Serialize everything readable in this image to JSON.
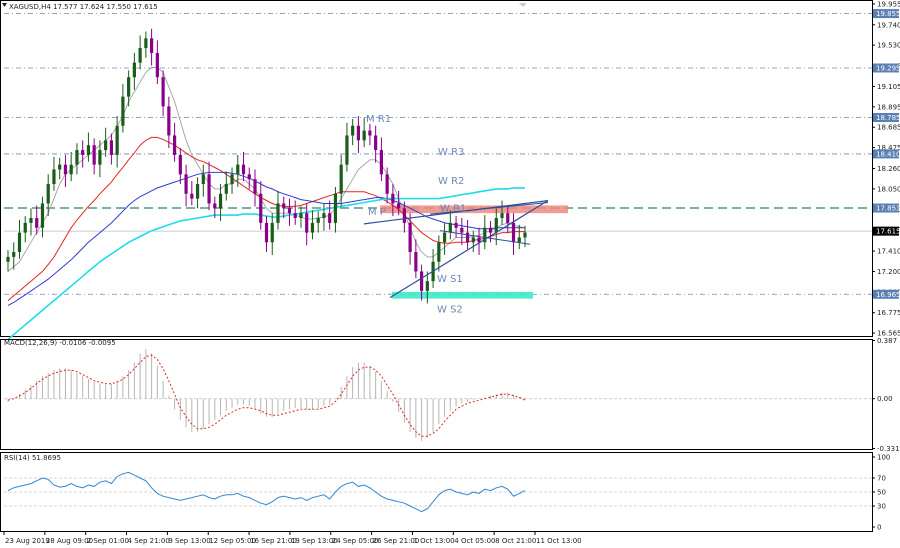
{
  "chart_data": {
    "type": "candlestick",
    "main": {
      "header": "XAGUSD,H4  17.577 17.624 17.550 17.615",
      "y_ticks": [
        "19.955",
        "19.740",
        "19.530",
        "19.315",
        "19.105",
        "18.895",
        "18.685",
        "18.475",
        "18.260",
        "18.050",
        "17.840",
        "17.630",
        "17.410",
        "17.200",
        "16.990",
        "16.775",
        "16.565"
      ],
      "ylim": [
        16.525,
        19.995
      ],
      "level_tags": [
        {
          "label": "19.855",
          "value": 19.855,
          "color": "#5a7fb5"
        },
        {
          "label": "19.295",
          "value": 19.295,
          "color": "#5a7fb5"
        },
        {
          "label": "18.785",
          "value": 18.785,
          "color": "#5a7fb5"
        },
        {
          "label": "18.410",
          "value": 18.41,
          "color": "#5a7fb5"
        },
        {
          "label": "17.853",
          "value": 17.853,
          "color": "#5a7fb5"
        },
        {
          "label": "17.615",
          "value": 17.615,
          "color": "#000000"
        },
        {
          "label": "16.965",
          "value": 16.965,
          "color": "#5a7fb5"
        }
      ],
      "level_labels": [
        {
          "text": "M R1",
          "value": 18.78
        },
        {
          "text": "W R3",
          "value": 18.44
        },
        {
          "text": "W R2",
          "value": 18.14
        },
        {
          "text": "W R1",
          "value": 17.86
        },
        {
          "text": "M P",
          "value": 17.82
        },
        {
          "text": "W S1",
          "value": 17.13
        },
        {
          "text": "W S2",
          "value": 16.82
        }
      ],
      "series": [
        {
          "name": "",
          "kind": "close",
          "values": [
            17.35,
            17.4,
            17.6,
            17.7,
            17.75,
            17.65,
            17.9,
            18.1,
            18.25,
            18.3,
            18.2,
            18.3,
            18.45,
            18.4,
            18.5,
            18.3,
            18.45,
            18.55,
            18.4,
            18.7,
            19.0,
            19.2,
            19.35,
            19.5,
            19.6,
            19.45,
            19.2,
            18.9,
            18.6,
            18.4,
            18.2,
            18.0,
            17.95,
            18.1,
            18.2,
            17.9,
            17.85,
            18.0,
            18.1,
            18.2,
            18.3,
            18.2,
            18.15,
            18.0,
            17.7,
            17.5,
            17.7,
            17.9,
            17.85,
            17.8,
            17.75,
            17.8,
            17.6,
            17.7,
            17.75,
            17.8,
            17.7,
            18.0,
            18.3,
            18.6,
            18.7,
            18.55,
            18.65,
            18.6,
            18.45,
            18.2,
            18.0,
            17.9,
            17.85,
            17.7,
            17.4,
            17.2,
            17.0,
            17.1,
            17.3,
            17.5,
            17.6,
            17.7,
            17.65,
            17.6,
            17.5,
            17.55,
            17.5,
            17.65,
            17.6,
            17.75,
            17.8,
            17.7,
            17.5,
            17.55,
            17.6
          ]
        },
        {
          "name": "",
          "kind": "ma-gray",
          "values": [
            17.2,
            17.25,
            17.3,
            17.4,
            17.5,
            17.6,
            17.7,
            17.8,
            17.95,
            18.1,
            18.2,
            18.25,
            18.3,
            18.35,
            18.4,
            18.45,
            18.5,
            18.55,
            18.6,
            18.7,
            18.8,
            18.95,
            19.05,
            19.15,
            19.25,
            19.3,
            19.3,
            19.25,
            19.1,
            18.95,
            18.75,
            18.55,
            18.4,
            18.3,
            18.2,
            18.1,
            18.05,
            18.05,
            18.1,
            18.1,
            18.15,
            18.15,
            18.1,
            18.05,
            17.95,
            17.85,
            17.8,
            17.8,
            17.8,
            17.8,
            17.78,
            17.76,
            17.74,
            17.74,
            17.75,
            17.76,
            17.78,
            17.85,
            17.95,
            18.05,
            18.15,
            18.25,
            18.3,
            18.35,
            18.35,
            18.3,
            18.2,
            18.1,
            17.95,
            17.8,
            17.65,
            17.5,
            17.4,
            17.35,
            17.35,
            17.4,
            17.45,
            17.5,
            17.55,
            17.55,
            17.55,
            17.56,
            17.57,
            17.6,
            17.62,
            17.65,
            17.68,
            17.7,
            17.68,
            17.66,
            17.65
          ]
        },
        {
          "name": "",
          "kind": "ma-red",
          "values": [
            16.9,
            16.95,
            17.0,
            17.05,
            17.1,
            17.15,
            17.2,
            17.27,
            17.35,
            17.45,
            17.55,
            17.65,
            17.73,
            17.8,
            17.87,
            17.93,
            18.0,
            18.06,
            18.12,
            18.2,
            18.27,
            18.35,
            18.42,
            18.5,
            18.55,
            18.58,
            18.58,
            18.56,
            18.53,
            18.5,
            18.46,
            18.42,
            18.38,
            18.35,
            18.33,
            18.3,
            18.27,
            18.24,
            18.2,
            18.16,
            18.12,
            18.08,
            18.04,
            18.0,
            17.96,
            17.93,
            17.9,
            17.88,
            17.87,
            17.87,
            17.87,
            17.88,
            17.9,
            17.92,
            17.94,
            17.96,
            17.98,
            18.0,
            18.02,
            18.02,
            18.02,
            18.02,
            18.02,
            18.0,
            17.98,
            17.95,
            17.92,
            17.88,
            17.84,
            17.78,
            17.72,
            17.66,
            17.6,
            17.56,
            17.52,
            17.5,
            17.49,
            17.49,
            17.5,
            17.5,
            17.5,
            17.52,
            17.53,
            17.54,
            17.56,
            17.58,
            17.6,
            17.6,
            17.61,
            17.61,
            17.61
          ]
        },
        {
          "name": "",
          "kind": "ma-blue",
          "values": [
            16.85,
            16.88,
            16.92,
            16.96,
            17.0,
            17.04,
            17.08,
            17.12,
            17.17,
            17.22,
            17.27,
            17.32,
            17.38,
            17.44,
            17.5,
            17.55,
            17.6,
            17.65,
            17.7,
            17.76,
            17.82,
            17.88,
            17.93,
            17.97,
            18.0,
            18.03,
            18.06,
            18.08,
            18.1,
            18.12,
            18.14,
            18.16,
            18.18,
            18.2,
            18.21,
            18.22,
            18.22,
            18.22,
            18.22,
            18.21,
            18.2,
            18.18,
            18.16,
            18.13,
            18.1,
            18.07,
            18.05,
            18.02,
            18.0,
            17.98,
            17.96,
            17.94,
            17.93,
            17.92,
            17.91,
            17.9,
            17.9,
            17.9,
            17.9,
            17.91,
            17.92,
            17.93,
            17.94,
            17.95,
            17.96,
            17.96,
            17.95,
            17.93,
            17.91,
            17.88,
            17.85,
            17.82,
            17.79,
            17.76,
            17.74,
            17.72,
            17.7,
            17.69,
            17.68,
            17.67,
            17.66,
            17.65,
            17.64,
            17.64,
            17.64,
            17.65,
            17.65,
            17.65,
            17.65,
            17.65,
            17.65
          ]
        },
        {
          "name": "",
          "kind": "ma-cyan",
          "values": [
            16.5,
            16.55,
            16.6,
            16.65,
            16.7,
            16.75,
            16.8,
            16.85,
            16.9,
            16.95,
            17.0,
            17.05,
            17.1,
            17.15,
            17.2,
            17.25,
            17.3,
            17.34,
            17.38,
            17.42,
            17.46,
            17.5,
            17.53,
            17.56,
            17.59,
            17.62,
            17.64,
            17.66,
            17.68,
            17.7,
            17.72,
            17.73,
            17.74,
            17.75,
            17.76,
            17.77,
            17.78,
            17.78,
            17.78,
            17.78,
            17.78,
            17.79,
            17.79,
            17.79,
            17.78,
            17.77,
            17.76,
            17.76,
            17.77,
            17.78,
            17.79,
            17.8,
            17.81,
            17.82,
            17.83,
            17.84,
            17.85,
            17.86,
            17.87,
            17.88,
            17.89,
            17.9,
            17.91,
            17.92,
            17.93,
            17.94,
            17.95,
            17.95,
            17.95,
            17.95,
            17.95,
            17.95,
            17.95,
            17.95,
            17.95,
            17.95,
            17.96,
            17.97,
            17.98,
            17.99,
            18.0,
            18.01,
            18.02,
            18.03,
            18.04,
            18.05,
            18.05,
            18.05,
            18.06,
            18.06,
            18.06
          ]
        }
      ],
      "x_tick_labels": [
        "23 Aug 2019",
        "28 Aug 09:00",
        "2 Sep 01:00",
        "4 Sep 21:00",
        "9 Sep 13:00",
        "12 Sep 05:00",
        "16 Sep 21:00",
        "19 Sep 13:00",
        "24 Sep 05:00",
        "26 Sep 21:00",
        "1 Oct 13:00",
        "4 Oct 05:00",
        "8 Oct 21:00",
        "11 Oct 13:00"
      ]
    },
    "macd": {
      "header": "MACD(12,26,9) -0.0106 -0.0095",
      "y_ticks": [
        "0.387",
        "0.00",
        "-0.3311"
      ],
      "ylim": [
        -0.3411,
        0.397
      ],
      "histogram": [
        -0.02,
        0.0,
        0.03,
        0.06,
        0.09,
        0.12,
        0.15,
        0.17,
        0.19,
        0.2,
        0.2,
        0.19,
        0.17,
        0.15,
        0.13,
        0.11,
        0.1,
        0.09,
        0.1,
        0.12,
        0.15,
        0.19,
        0.24,
        0.3,
        0.33,
        0.3,
        0.22,
        0.12,
        0.02,
        -0.07,
        -0.14,
        -0.19,
        -0.22,
        -0.22,
        -0.2,
        -0.17,
        -0.14,
        -0.11,
        -0.08,
        -0.06,
        -0.04,
        -0.04,
        -0.05,
        -0.07,
        -0.1,
        -0.12,
        -0.12,
        -0.1,
        -0.08,
        -0.07,
        -0.06,
        -0.06,
        -0.07,
        -0.07,
        -0.06,
        -0.05,
        -0.04,
        0.0,
        0.08,
        0.15,
        0.21,
        0.24,
        0.24,
        0.22,
        0.18,
        0.12,
        0.05,
        -0.02,
        -0.09,
        -0.16,
        -0.22,
        -0.26,
        -0.28,
        -0.26,
        -0.22,
        -0.17,
        -0.12,
        -0.08,
        -0.05,
        -0.03,
        -0.02,
        -0.01,
        0.0,
        0.01,
        0.02,
        0.03,
        0.04,
        0.04,
        0.03,
        0.01,
        -0.01
      ],
      "signal": [
        -0.01,
        0.0,
        0.02,
        0.04,
        0.07,
        0.1,
        0.13,
        0.15,
        0.17,
        0.18,
        0.19,
        0.19,
        0.18,
        0.16,
        0.14,
        0.12,
        0.11,
        0.1,
        0.1,
        0.11,
        0.13,
        0.16,
        0.2,
        0.24,
        0.28,
        0.29,
        0.26,
        0.2,
        0.12,
        0.03,
        -0.06,
        -0.12,
        -0.17,
        -0.2,
        -0.2,
        -0.19,
        -0.17,
        -0.14,
        -0.11,
        -0.09,
        -0.07,
        -0.06,
        -0.06,
        -0.07,
        -0.08,
        -0.1,
        -0.11,
        -0.11,
        -0.1,
        -0.09,
        -0.08,
        -0.07,
        -0.07,
        -0.07,
        -0.07,
        -0.06,
        -0.05,
        -0.02,
        0.03,
        0.09,
        0.15,
        0.19,
        0.21,
        0.21,
        0.19,
        0.15,
        0.09,
        0.03,
        -0.04,
        -0.11,
        -0.17,
        -0.22,
        -0.25,
        -0.25,
        -0.23,
        -0.2,
        -0.15,
        -0.11,
        -0.07,
        -0.05,
        -0.03,
        -0.02,
        -0.01,
        0.0,
        0.01,
        0.02,
        0.03,
        0.03,
        0.02,
        0.01,
        -0.01
      ]
    },
    "rsi": {
      "header": "RSI(14) 51.8695",
      "y_ticks": [
        "100",
        "70",
        "50",
        "30",
        "0"
      ],
      "ylim": [
        0,
        100
      ],
      "levels": [
        70,
        50,
        30
      ],
      "values": [
        52,
        56,
        58,
        60,
        62,
        66,
        70,
        68,
        60,
        57,
        58,
        62,
        58,
        56,
        60,
        58,
        64,
        66,
        62,
        72,
        76,
        78,
        74,
        70,
        66,
        56,
        48,
        44,
        42,
        40,
        38,
        40,
        42,
        44,
        46,
        42,
        40,
        44,
        46,
        46,
        48,
        44,
        42,
        38,
        34,
        32,
        36,
        42,
        44,
        42,
        40,
        42,
        38,
        42,
        44,
        46,
        40,
        50,
        58,
        62,
        64,
        58,
        60,
        56,
        50,
        44,
        40,
        38,
        36,
        34,
        30,
        26,
        22,
        26,
        36,
        46,
        52,
        54,
        50,
        48,
        46,
        50,
        48,
        54,
        52,
        56,
        58,
        54,
        44,
        48,
        52
      ]
    }
  }
}
